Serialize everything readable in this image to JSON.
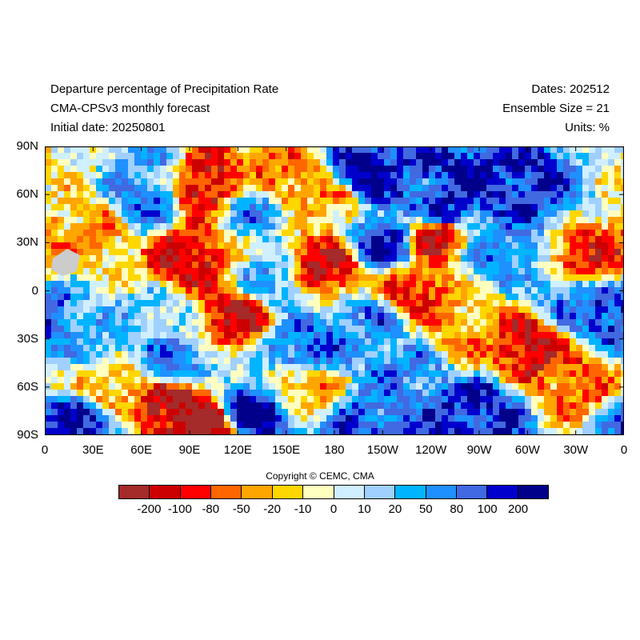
{
  "header": {
    "title_line1": "Departure percentage of Precipitation Rate",
    "title_line2": "CMA-CPSv3 monthly forecast",
    "title_line3": "Initial date: 20250801",
    "dates": "Dates: 202512",
    "ensemble": "Ensemble Size = 21",
    "units": "Units: %"
  },
  "map": {
    "lat_labels": [
      "90N",
      "60N",
      "30N",
      "0",
      "30S",
      "60S",
      "90S"
    ],
    "lon_labels": [
      "0",
      "30E",
      "60E",
      "90E",
      "120E",
      "150E",
      "180",
      "150W",
      "120W",
      "90W",
      "60W",
      "30W",
      "0"
    ],
    "lat_range": [
      -90,
      90
    ],
    "lon_range": [
      0,
      360
    ],
    "projection": "cylindrical equidistant",
    "missing_color": "#cccccc",
    "field": [
      {
        "lat": 80,
        "lon": 10,
        "level": 6
      },
      {
        "lat": 75,
        "lon": 60,
        "level": 9
      },
      {
        "lat": 70,
        "lon": 150,
        "level": 3
      },
      {
        "lat": 72,
        "lon": 200,
        "level": 13
      },
      {
        "lat": 72,
        "lon": 260,
        "level": 12
      },
      {
        "lat": 65,
        "lon": 100,
        "level": 1
      },
      {
        "lat": 65,
        "lon": 215,
        "level": 11
      },
      {
        "lat": 65,
        "lon": 300,
        "level": 12
      },
      {
        "lat": 55,
        "lon": 60,
        "level": 10
      },
      {
        "lat": 55,
        "lon": 180,
        "level": 4
      },
      {
        "lat": 50,
        "lon": 130,
        "level": 9
      },
      {
        "lat": 50,
        "lon": 250,
        "level": 12
      },
      {
        "lat": 40,
        "lon": 30,
        "level": 4
      },
      {
        "lat": 35,
        "lon": 245,
        "level": 1
      },
      {
        "lat": 30,
        "lon": 210,
        "level": 12
      },
      {
        "lat": 25,
        "lon": 280,
        "level": 10
      },
      {
        "lat": 20,
        "lon": 90,
        "level": 1
      },
      {
        "lat": 20,
        "lon": 340,
        "level": 2
      },
      {
        "lat": 15,
        "lon": 175,
        "level": 1
      },
      {
        "lat": 5,
        "lon": 140,
        "level": 9
      },
      {
        "lat": 0,
        "lon": 230,
        "level": 2
      },
      {
        "lat": -5,
        "lon": 330,
        "level": 10
      },
      {
        "lat": -15,
        "lon": 70,
        "level": 8
      },
      {
        "lat": -15,
        "lon": 120,
        "level": 1
      },
      {
        "lat": -20,
        "lon": 200,
        "level": 10
      },
      {
        "lat": -15,
        "lon": 350,
        "level": 12
      },
      {
        "lat": -30,
        "lon": 30,
        "level": 9
      },
      {
        "lat": -35,
        "lon": 160,
        "level": 11
      },
      {
        "lat": -30,
        "lon": 260,
        "level": 4
      },
      {
        "lat": -35,
        "lon": 300,
        "level": 1
      },
      {
        "lat": -45,
        "lon": 80,
        "level": 10
      },
      {
        "lat": -50,
        "lon": 230,
        "level": 10
      },
      {
        "lat": -55,
        "lon": 330,
        "level": 3
      },
      {
        "lat": -60,
        "lon": 40,
        "level": 4
      },
      {
        "lat": -60,
        "lon": 160,
        "level": 4
      },
      {
        "lat": -70,
        "lon": 80,
        "level": 0
      },
      {
        "lat": -75,
        "lon": 130,
        "level": 13
      },
      {
        "lat": -75,
        "lon": 270,
        "level": 12
      },
      {
        "lat": -82,
        "lon": 20,
        "level": 12
      },
      {
        "lat": -85,
        "lon": 100,
        "level": 0
      },
      {
        "lat": -85,
        "lon": 200,
        "level": 11
      }
    ]
  },
  "copyright": "Copyright © CEMC, CMA",
  "colorbar": {
    "colors": [
      "#a52a2a",
      "#cd0000",
      "#ff0000",
      "#ff6600",
      "#ffa500",
      "#ffd700",
      "#ffffc0",
      "#d0f0ff",
      "#a0d0ff",
      "#00b4ff",
      "#1e90ff",
      "#4169e1",
      "#0000cd",
      "#00008b"
    ],
    "labels": [
      "-200",
      "-100",
      "-80",
      "-50",
      "-20",
      "-10",
      "0",
      "10",
      "20",
      "50",
      "80",
      "100",
      "200"
    ]
  }
}
